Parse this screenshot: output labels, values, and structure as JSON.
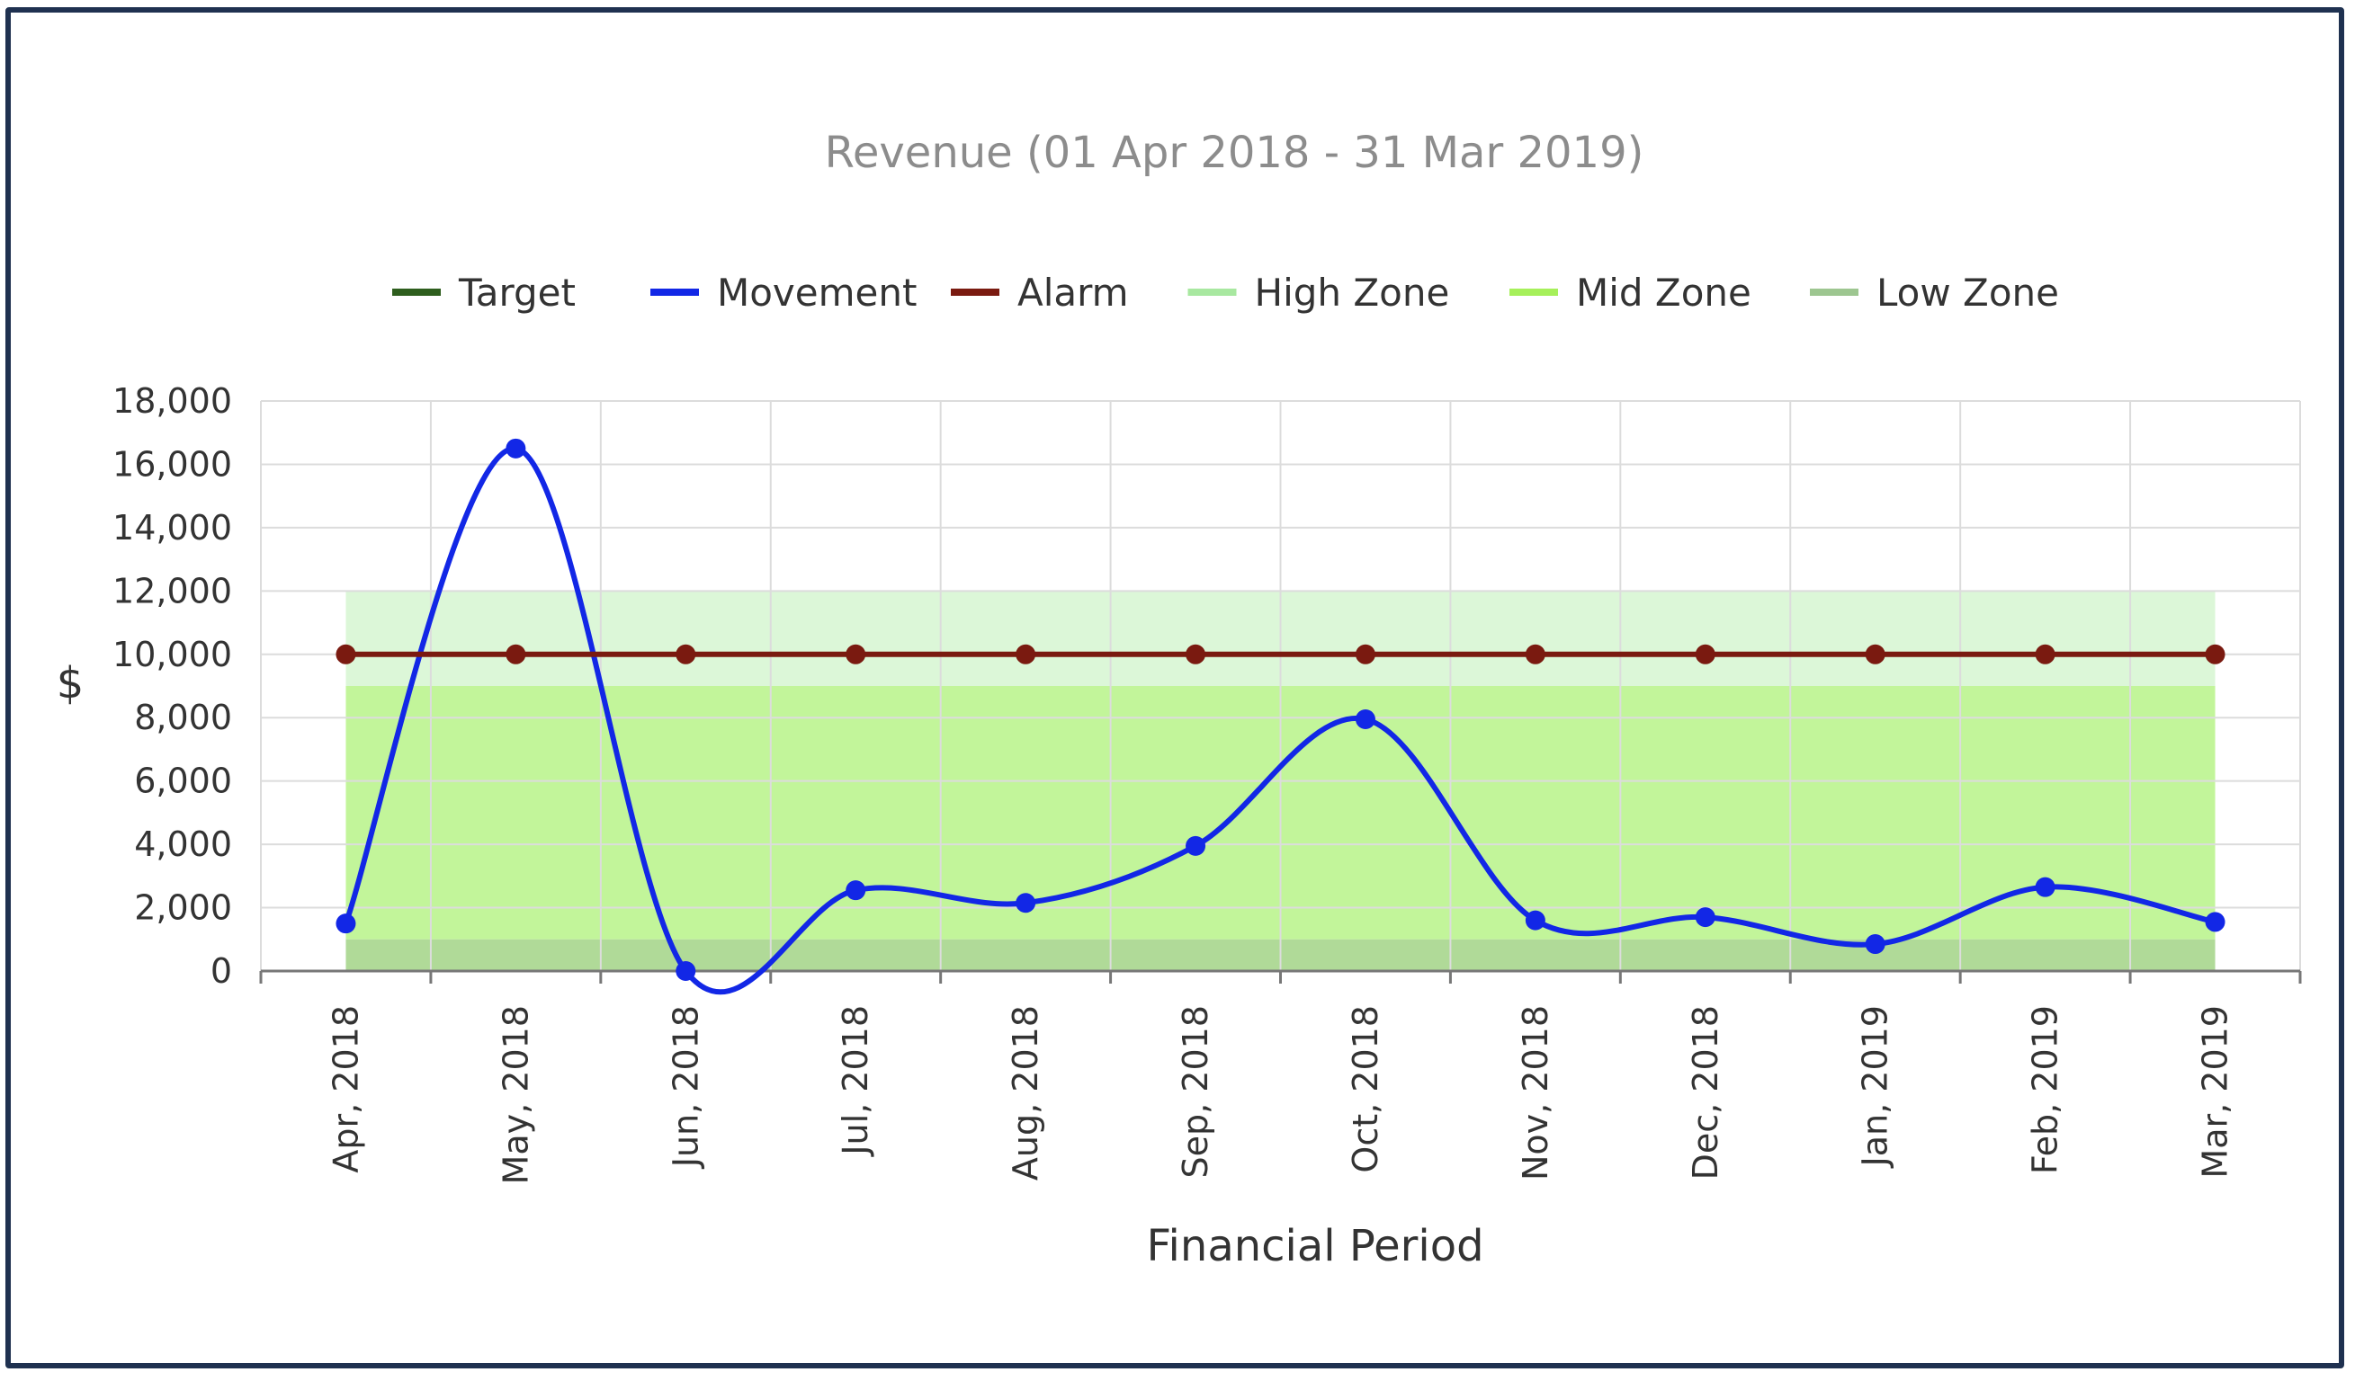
{
  "chart_data": {
    "type": "line",
    "title": "Revenue (01 Apr 2018 - 31 Mar 2019)",
    "xlabel": "Financial Period",
    "ylabel": "$",
    "ylim": [
      0,
      18000
    ],
    "yticks": [
      0,
      2000,
      4000,
      6000,
      8000,
      10000,
      12000,
      14000,
      16000,
      18000
    ],
    "categories": [
      "Apr, 2018",
      "May, 2018",
      "Jun, 2018",
      "Jul, 2018",
      "Aug, 2018",
      "Sep, 2018",
      "Oct, 2018",
      "Nov, 2018",
      "Dec, 2018",
      "Jan, 2019",
      "Feb, 2019",
      "Mar, 2019"
    ],
    "legend_position": "top",
    "grid": true,
    "legend": [
      {
        "name": "Target",
        "color": "#2e5e1e"
      },
      {
        "name": "Movement",
        "color": "#1227e6"
      },
      {
        "name": "Alarm",
        "color": "#7a1a10"
      },
      {
        "name": "High Zone",
        "color": "#a8e8a0"
      },
      {
        "name": "Mid Zone",
        "color": "#a6f05a"
      },
      {
        "name": "Low Zone",
        "color": "#9dc690"
      }
    ],
    "series": [
      {
        "name": "Movement",
        "color": "#1227e6",
        "smooth": true,
        "values": [
          1500,
          16500,
          0,
          2550,
          2150,
          3950,
          7950,
          1600,
          1700,
          850,
          2650,
          1550
        ]
      },
      {
        "name": "Alarm",
        "color": "#7a1a10",
        "values": [
          10000,
          10000,
          10000,
          10000,
          10000,
          10000,
          10000,
          10000,
          10000,
          10000,
          10000,
          10000
        ]
      }
    ],
    "zones": [
      {
        "name": "High Zone",
        "from": 9000,
        "to": 12000,
        "color": "#dcf7d8"
      },
      {
        "name": "Mid Zone",
        "from": 1000,
        "to": 9000,
        "color": "#c2f59a"
      },
      {
        "name": "Low Zone",
        "from": 0,
        "to": 1000,
        "color": "#b0da98"
      }
    ]
  }
}
